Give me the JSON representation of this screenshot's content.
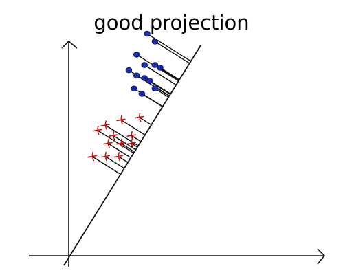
{
  "title": "good projection",
  "colors": {
    "ink": "#111111",
    "class_a": "#1c2fa3",
    "class_b": "#c81414"
  },
  "points": {
    "blue": [
      {
        "x": 0.3,
        "y": 0.85
      },
      {
        "x": 0.33,
        "y": 0.82
      },
      {
        "x": 0.26,
        "y": 0.77
      },
      {
        "x": 0.29,
        "y": 0.73
      },
      {
        "x": 0.33,
        "y": 0.73
      },
      {
        "x": 0.35,
        "y": 0.72
      },
      {
        "x": 0.23,
        "y": 0.71
      },
      {
        "x": 0.26,
        "y": 0.69
      },
      {
        "x": 0.29,
        "y": 0.68
      },
      {
        "x": 0.31,
        "y": 0.67
      },
      {
        "x": 0.25,
        "y": 0.64
      },
      {
        "x": 0.28,
        "y": 0.62
      },
      {
        "x": 0.33,
        "y": 0.64
      }
    ],
    "red": [
      {
        "x": 0.27,
        "y": 0.53
      },
      {
        "x": 0.2,
        "y": 0.52
      },
      {
        "x": 0.14,
        "y": 0.5
      },
      {
        "x": 0.11,
        "y": 0.48
      },
      {
        "x": 0.17,
        "y": 0.46
      },
      {
        "x": 0.24,
        "y": 0.46
      },
      {
        "x": 0.15,
        "y": 0.43
      },
      {
        "x": 0.2,
        "y": 0.43
      },
      {
        "x": 0.24,
        "y": 0.43
      },
      {
        "x": 0.09,
        "y": 0.38
      },
      {
        "x": 0.14,
        "y": 0.38
      },
      {
        "x": 0.19,
        "y": 0.38
      }
    ]
  }
}
